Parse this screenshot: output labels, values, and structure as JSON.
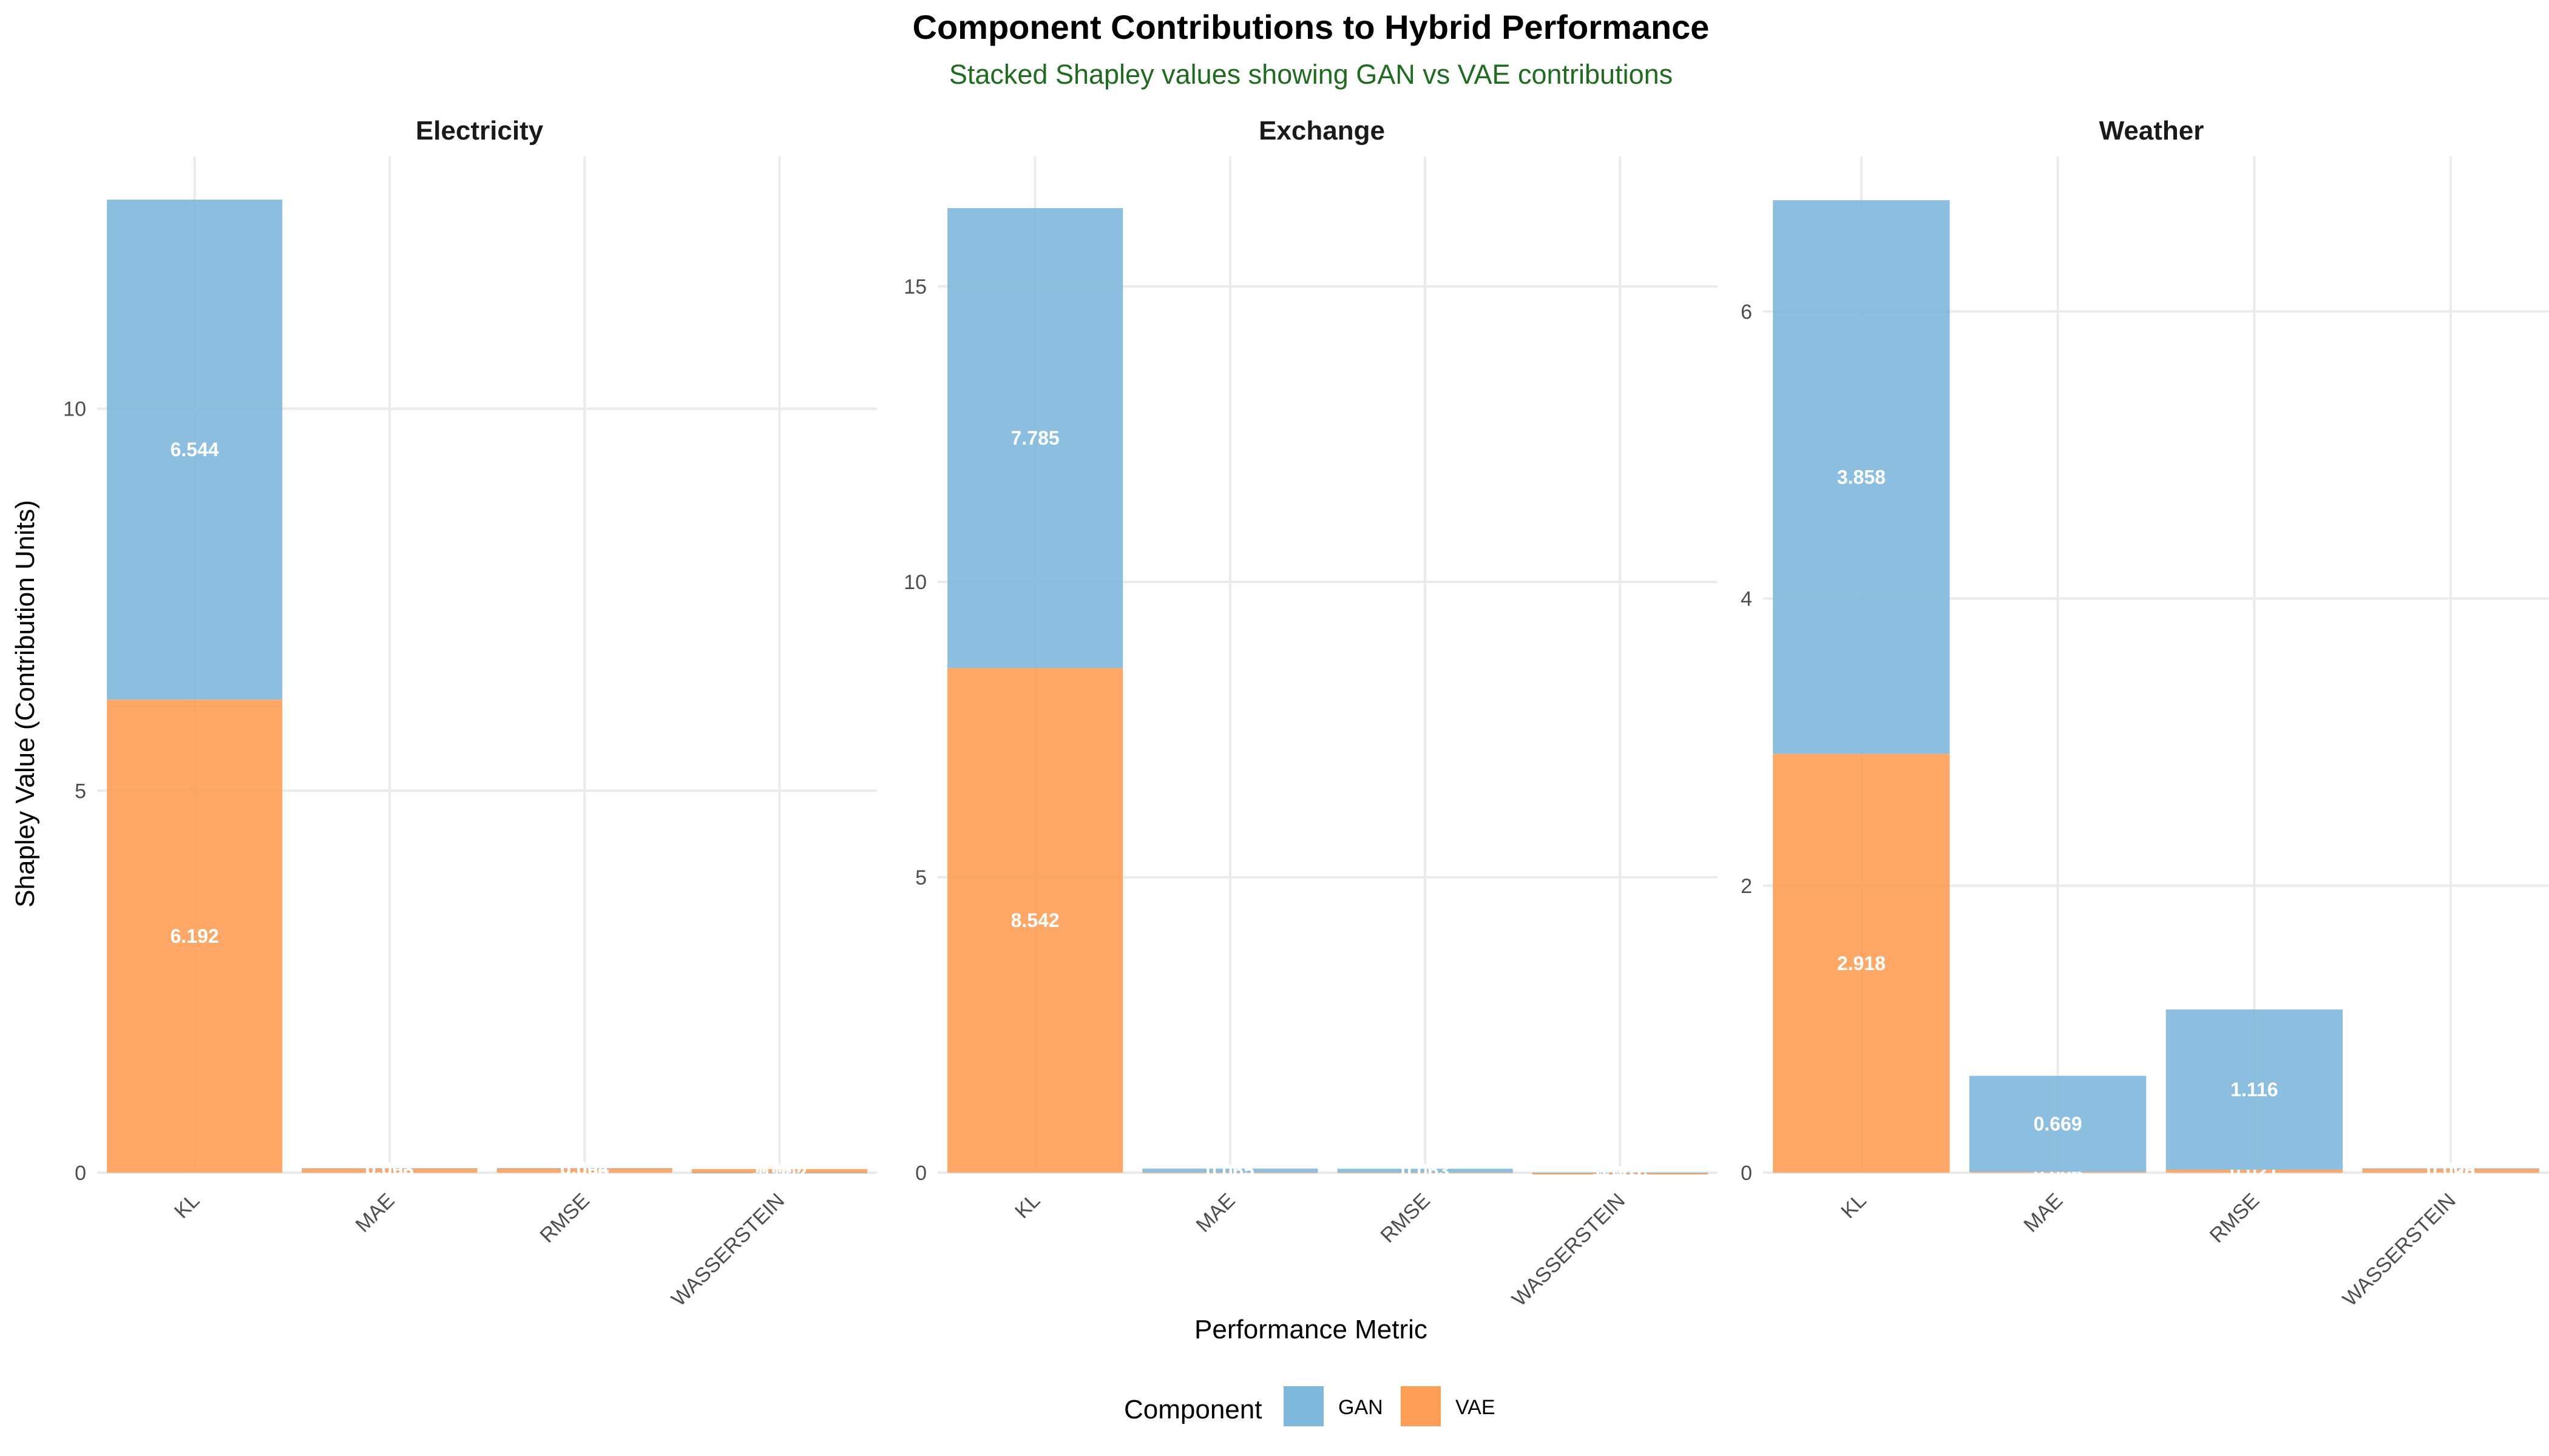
{
  "chart_data": {
    "type": "bar",
    "stacked": true,
    "title": "Component Contributions to Hybrid Performance",
    "subtitle": "Stacked Shapley values showing GAN vs VAE contributions",
    "xlabel": "Performance Metric",
    "ylabel": "Shapley Value (Contribution Units)",
    "legend": {
      "title": "Component",
      "position": "bottom",
      "entries": [
        "GAN",
        "VAE"
      ]
    },
    "colors": {
      "GAN": "#7fb8dc",
      "VAE": "#fe9d56"
    },
    "grid": true,
    "categories": [
      "KL",
      "MAE",
      "RMSE",
      "WASSERSTEIN"
    ],
    "facets": [
      {
        "name": "Electricity",
        "ylim": [
          0,
          13.3
        ],
        "yticks": [
          0,
          5,
          10
        ],
        "series": [
          {
            "name": "VAE",
            "values": [
              6.192,
              0.056,
              0.056,
              0.047
            ],
            "labels": [
              "6.192",
              "0.056",
              "0.056",
              "0.047"
            ]
          },
          {
            "name": "GAN",
            "values": [
              6.544,
              0.003,
              0.004,
              -0.002
            ],
            "labels": [
              "6.544",
              "0.003",
              "0.004",
              "-0.002"
            ]
          }
        ]
      },
      {
        "name": "Exchange",
        "ylim": [
          0,
          17.2
        ],
        "yticks": [
          0,
          5,
          10,
          15
        ],
        "series": [
          {
            "name": "VAE",
            "values": [
              8.542,
              0.004,
              0.004,
              -0.03
            ],
            "labels": [
              "8.542",
              "0.004",
              "0.004",
              "-0.030"
            ]
          },
          {
            "name": "GAN",
            "values": [
              7.785,
              0.065,
              0.063,
              0.001
            ],
            "labels": [
              "7.785",
              "0.065",
              "0.063",
              "0.001"
            ]
          }
        ]
      },
      {
        "name": "Weather",
        "ylim": [
          0,
          7.08
        ],
        "yticks": [
          0,
          2,
          4,
          6
        ],
        "series": [
          {
            "name": "VAE",
            "values": [
              2.918,
              0.006,
              0.021,
              0.026
            ],
            "labels": [
              "2.918",
              "0.006",
              "0.021",
              "0.026"
            ]
          },
          {
            "name": "GAN",
            "values": [
              3.858,
              0.669,
              1.116,
              0.005
            ],
            "labels": [
              "3.858",
              "0.669",
              "1.116",
              "0.005"
            ]
          }
        ]
      }
    ]
  }
}
